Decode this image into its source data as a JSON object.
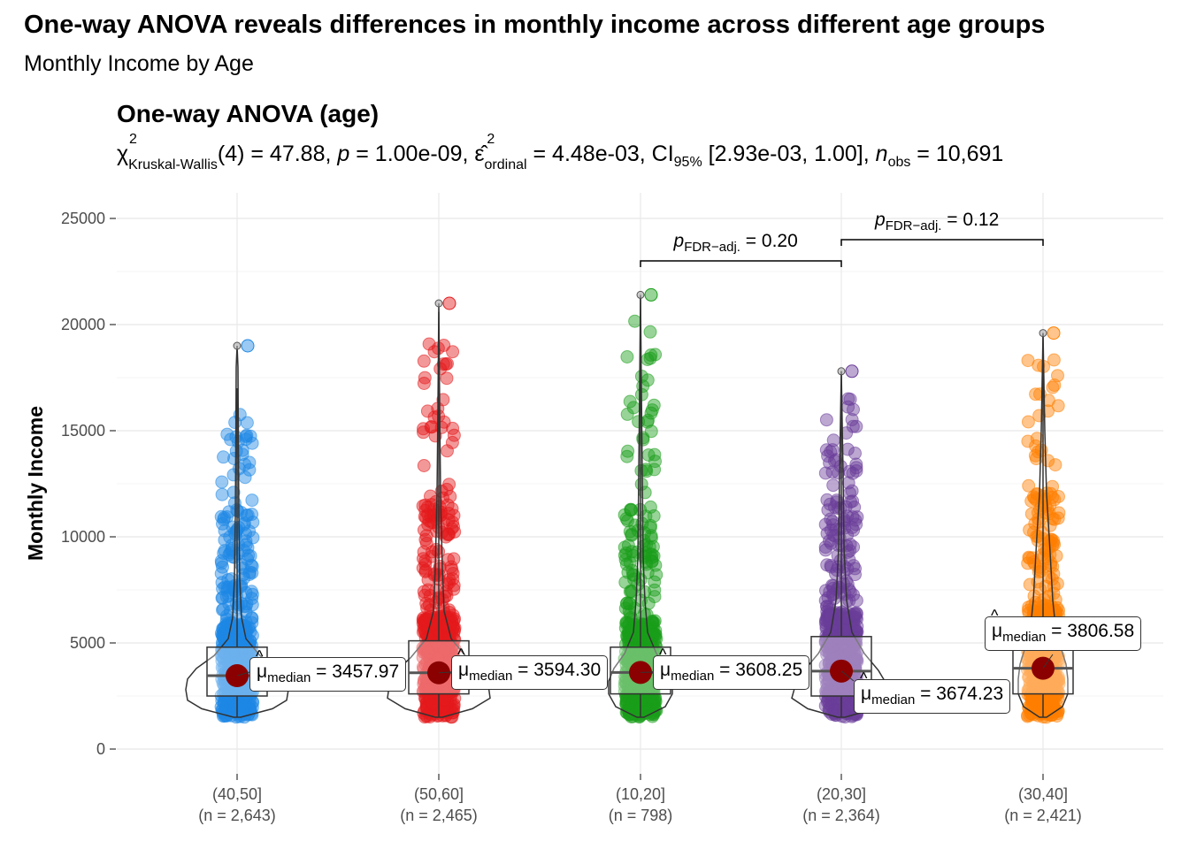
{
  "title": "One-way ANOVA reveals differences in monthly income across different age groups",
  "subtitle": "Monthly Income by Age",
  "panel_title": "One-way ANOVA (age)",
  "stats": {
    "chi_symbol": "χ",
    "chi_sup": "2",
    "chi_sub": "Kruskal-Wallis",
    "df": "(4)",
    "statistic": " = 47.88, ",
    "p_symbol": "p",
    "p_value": " = 1.00e-09, ",
    "eps_symbol": "ε̂",
    "eps_sup": "2",
    "eps_sub": "ordinal",
    "eps_value": " = 4.48e-03, CI",
    "ci_sub": "95%",
    "ci_value": " [2.93e-03, 1.00], ",
    "n_symbol": "n",
    "n_sub": "obs",
    "n_value": " = 10,691"
  },
  "chart_data": {
    "type": "violin-box-scatter",
    "ylabel": "Monthly Income",
    "ylim": [
      0,
      26000
    ],
    "yticks": [
      0,
      5000,
      10000,
      15000,
      20000,
      25000
    ],
    "grid": true,
    "categories": [
      "(40,50]",
      "(50,60]",
      "(10,20]",
      "(20,30]",
      "(30,40]"
    ],
    "counts": [
      "(n = 2,643)",
      "(n = 2,465)",
      "(n = 798)",
      "(n = 2,364)",
      "(n = 2,421)"
    ],
    "colors": [
      "#1E88E5",
      "#E41A1C",
      "#1A9E1A",
      "#6A3D9A",
      "#FF7F00"
    ],
    "medians": [
      3457.97,
      3594.3,
      3608.25,
      3674.23,
      3806.58
    ],
    "median_labels": [
      "3457.97",
      "3594.30",
      "3608.25",
      "3674.23",
      "3806.58"
    ],
    "median_label_prefix": "μ",
    "median_label_sub": "median",
    "box": [
      {
        "q1": 2500,
        "median": 3458,
        "q3": 4800,
        "whisker_low": 1500,
        "whisker_high": 17000,
        "max": 19000
      },
      {
        "q1": 2600,
        "median": 3594,
        "q3": 5100,
        "whisker_low": 1500,
        "whisker_high": 20600,
        "max": 21000
      },
      {
        "q1": 2600,
        "median": 3608,
        "q3": 4800,
        "whisker_low": 1500,
        "whisker_high": 21300,
        "max": 21400
      },
      {
        "q1": 2500,
        "median": 3674,
        "q3": 5300,
        "whisker_low": 1500,
        "whisker_high": 17800,
        "max": 17800
      },
      {
        "q1": 2600,
        "median": 3807,
        "q3": 5600,
        "whisker_low": 1500,
        "whisker_high": 19600,
        "max": 19600
      }
    ],
    "pairwise": [
      {
        "from": 2,
        "to": 3,
        "y": 23000,
        "label_prefix": "p",
        "label_sub": "FDR−adj.",
        "label_value": " = 0.20"
      },
      {
        "from": 3,
        "to": 4,
        "y": 24000,
        "label_prefix": "p",
        "label_sub": "FDR−adj.",
        "label_value": " = 0.12"
      }
    ]
  }
}
